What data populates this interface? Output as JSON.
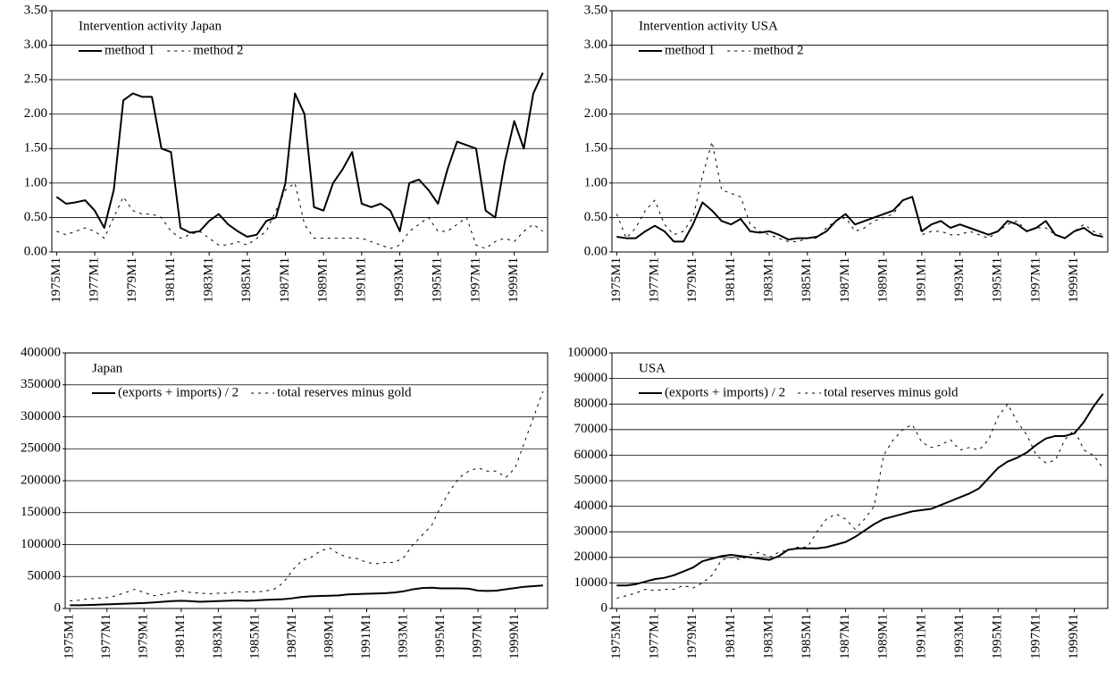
{
  "chart_data": [
    {
      "type": "line",
      "title": "Intervention activity Japan",
      "grid": true,
      "categories": [
        "1975M1",
        null,
        null,
        null,
        "1977M1",
        null,
        null,
        null,
        "1979M1",
        null,
        null,
        null,
        "1981M1",
        null,
        null,
        null,
        "1983M1",
        null,
        null,
        null,
        "1985M1",
        null,
        null,
        null,
        "1987M1",
        null,
        null,
        null,
        "1989M1",
        null,
        null,
        null,
        "1991M1",
        null,
        null,
        null,
        "1993M1",
        null,
        null,
        null,
        "1995M1",
        null,
        null,
        null,
        "1997M1",
        null,
        null,
        null,
        "1999M1",
        null,
        null,
        null
      ],
      "ylim": [
        0,
        3.5
      ],
      "yticks": [
        {
          "value": 0,
          "label": "0.00"
        },
        {
          "value": 0.5,
          "label": "0.50"
        },
        {
          "value": 1,
          "label": "1.00"
        },
        {
          "value": 1.5,
          "label": "1.50"
        },
        {
          "value": 2,
          "label": "2.00"
        },
        {
          "value": 2.5,
          "label": "2.50"
        },
        {
          "value": 3,
          "label": "3.00"
        },
        {
          "value": 3.5,
          "label": "3.50"
        }
      ],
      "series": [
        {
          "name": "method 1",
          "color": "#000000",
          "style": "solid",
          "values": [
            0.8,
            0.7,
            0.72,
            0.75,
            0.6,
            0.35,
            0.9,
            2.2,
            2.3,
            2.25,
            2.25,
            1.5,
            1.45,
            0.35,
            0.28,
            0.3,
            0.45,
            0.55,
            0.4,
            0.3,
            0.22,
            0.25,
            0.45,
            0.5,
            1.0,
            2.3,
            2.0,
            0.65,
            0.6,
            1.0,
            1.2,
            1.45,
            0.7,
            0.65,
            0.7,
            0.6,
            0.3,
            1.0,
            1.05,
            0.9,
            0.7,
            1.2,
            1.6,
            1.55,
            1.5,
            0.6,
            0.5,
            1.3,
            1.9,
            1.5,
            2.3,
            2.6
          ]
        },
        {
          "name": "method 2",
          "color": "#000000",
          "style": "dashed",
          "values": [
            0.3,
            0.25,
            0.3,
            0.35,
            0.3,
            0.2,
            0.5,
            0.8,
            0.6,
            0.55,
            0.55,
            0.5,
            0.3,
            0.2,
            0.25,
            0.3,
            0.2,
            0.1,
            0.1,
            0.15,
            0.1,
            0.2,
            0.3,
            0.6,
            0.9,
            1.0,
            0.4,
            0.2,
            0.2,
            0.2,
            0.2,
            0.2,
            0.2,
            0.15,
            0.1,
            0.05,
            0.1,
            0.3,
            0.4,
            0.5,
            0.3,
            0.3,
            0.4,
            0.5,
            0.1,
            0.05,
            0.15,
            0.2,
            0.15,
            0.3,
            0.4,
            0.3
          ]
        }
      ]
    },
    {
      "type": "line",
      "title": "Intervention activity USA",
      "grid": true,
      "categories": [
        "1975M1",
        null,
        null,
        null,
        "1977M1",
        null,
        null,
        null,
        "1979M1",
        null,
        null,
        null,
        "1981M1",
        null,
        null,
        null,
        "1983M1",
        null,
        null,
        null,
        "1985M1",
        null,
        null,
        null,
        "1987M1",
        null,
        null,
        null,
        "1989M1",
        null,
        null,
        null,
        "1991M1",
        null,
        null,
        null,
        "1993M1",
        null,
        null,
        null,
        "1995M1",
        null,
        null,
        null,
        "1997M1",
        null,
        null,
        null,
        "1999M1",
        null,
        null,
        null
      ],
      "ylim": [
        0,
        3.5
      ],
      "yticks": [
        {
          "value": 0,
          "label": "0.00"
        },
        {
          "value": 0.5,
          "label": "0.50"
        },
        {
          "value": 1,
          "label": "1.00"
        },
        {
          "value": 1.5,
          "label": "1.50"
        },
        {
          "value": 2,
          "label": "2.00"
        },
        {
          "value": 2.5,
          "label": "2.50"
        },
        {
          "value": 3,
          "label": "3.00"
        },
        {
          "value": 3.5,
          "label": "3.50"
        }
      ],
      "series": [
        {
          "name": "method 1",
          "color": "#000000",
          "style": "solid",
          "values": [
            0.22,
            0.2,
            0.2,
            0.3,
            0.38,
            0.3,
            0.15,
            0.15,
            0.4,
            0.72,
            0.6,
            0.45,
            0.4,
            0.48,
            0.3,
            0.28,
            0.3,
            0.25,
            0.18,
            0.2,
            0.2,
            0.22,
            0.3,
            0.45,
            0.55,
            0.4,
            0.45,
            0.5,
            0.55,
            0.6,
            0.75,
            0.8,
            0.3,
            0.4,
            0.45,
            0.35,
            0.4,
            0.35,
            0.3,
            0.25,
            0.3,
            0.45,
            0.4,
            0.3,
            0.35,
            0.45,
            0.25,
            0.2,
            0.3,
            0.35,
            0.25,
            0.22
          ]
        },
        {
          "name": "method 2",
          "color": "#000000",
          "style": "dashed",
          "values": [
            0.55,
            0.2,
            0.35,
            0.6,
            0.75,
            0.4,
            0.25,
            0.3,
            0.5,
            1.1,
            1.6,
            0.9,
            0.85,
            0.8,
            0.4,
            0.3,
            0.25,
            0.2,
            0.15,
            0.15,
            0.2,
            0.2,
            0.35,
            0.45,
            0.5,
            0.3,
            0.35,
            0.45,
            0.5,
            0.55,
            0.75,
            0.8,
            0.25,
            0.3,
            0.3,
            0.25,
            0.25,
            0.3,
            0.25,
            0.2,
            0.3,
            0.4,
            0.45,
            0.3,
            0.35,
            0.35,
            0.25,
            0.2,
            0.3,
            0.4,
            0.3,
            0.25
          ]
        }
      ]
    },
    {
      "type": "line",
      "title": "Japan",
      "grid": true,
      "categories": [
        "1975M1",
        null,
        null,
        null,
        "1977M1",
        null,
        null,
        null,
        "1979M1",
        null,
        null,
        null,
        "1981M1",
        null,
        null,
        null,
        "1983M1",
        null,
        null,
        null,
        "1985M1",
        null,
        null,
        null,
        "1987M1",
        null,
        null,
        null,
        "1989M1",
        null,
        null,
        null,
        "1991M1",
        null,
        null,
        null,
        "1993M1",
        null,
        null,
        null,
        "1995M1",
        null,
        null,
        null,
        "1997M1",
        null,
        null,
        null,
        "1999M1",
        null,
        null,
        null
      ],
      "ylim": [
        0,
        400000
      ],
      "yticks": [
        0,
        50000,
        100000,
        150000,
        200000,
        250000,
        300000,
        350000,
        400000
      ],
      "series": [
        {
          "name": "(exports + imports) / 2",
          "color": "#000000",
          "style": "solid",
          "values": [
            5000,
            5000,
            5500,
            6000,
            6500,
            7000,
            7500,
            8000,
            8500,
            9500,
            10500,
            11500,
            12000,
            11500,
            10500,
            11000,
            11500,
            12000,
            12500,
            12000,
            12500,
            13500,
            14000,
            14500,
            16000,
            18000,
            19000,
            19500,
            20000,
            20500,
            22000,
            22500,
            23000,
            23500,
            24000,
            25000,
            27000,
            30000,
            32000,
            32500,
            31500,
            31500,
            31500,
            31000,
            28000,
            27500,
            28000,
            30000,
            32000,
            34000,
            35000,
            36000
          ]
        },
        {
          "name": "total reserves minus gold",
          "color": "#000000",
          "style": "dashed",
          "values": [
            12000,
            13000,
            15000,
            16000,
            17000,
            20000,
            25000,
            30000,
            25000,
            20000,
            22000,
            25000,
            28000,
            25000,
            24000,
            23000,
            24000,
            24000,
            26000,
            26000,
            26000,
            27000,
            30000,
            40000,
            60000,
            75000,
            80000,
            90000,
            95000,
            85000,
            80000,
            78000,
            72000,
            70000,
            72000,
            72000,
            80000,
            100000,
            115000,
            130000,
            160000,
            185000,
            205000,
            215000,
            220000,
            215000,
            215000,
            205000,
            220000,
            260000,
            300000,
            340000
          ]
        }
      ]
    },
    {
      "type": "line",
      "title": "USA",
      "grid": true,
      "categories": [
        "1975M1",
        null,
        null,
        null,
        "1977M1",
        null,
        null,
        null,
        "1979M1",
        null,
        null,
        null,
        "1981M1",
        null,
        null,
        null,
        "1983M1",
        null,
        null,
        null,
        "1985M1",
        null,
        null,
        null,
        "1987M1",
        null,
        null,
        null,
        "1989M1",
        null,
        null,
        null,
        "1991M1",
        null,
        null,
        null,
        "1993M1",
        null,
        null,
        null,
        "1995M1",
        null,
        null,
        null,
        "1997M1",
        null,
        null,
        null,
        "1999M1",
        null,
        null,
        null
      ],
      "ylim": [
        0,
        100000
      ],
      "yticks": [
        0,
        10000,
        20000,
        30000,
        40000,
        50000,
        60000,
        70000,
        80000,
        90000,
        100000
      ],
      "series": [
        {
          "name": "(exports + imports) / 2",
          "color": "#000000",
          "style": "solid",
          "values": [
            9000,
            9000,
            9500,
            10500,
            11500,
            12000,
            13000,
            14500,
            16000,
            18500,
            19500,
            20500,
            21000,
            20500,
            20000,
            19500,
            19000,
            20500,
            23000,
            23500,
            23500,
            23500,
            24000,
            25000,
            26000,
            28000,
            30500,
            33000,
            35000,
            36000,
            37000,
            38000,
            38500,
            39000,
            40500,
            42000,
            43500,
            45000,
            47000,
            51000,
            55000,
            57500,
            59000,
            61000,
            64000,
            66500,
            67500,
            67500,
            68500,
            73000,
            79000,
            84000
          ]
        },
        {
          "name": "total reserves minus gold",
          "color": "#000000",
          "style": "dashed",
          "values": [
            4000,
            5000,
            6000,
            7500,
            7000,
            7500,
            7500,
            9000,
            8000,
            10000,
            13000,
            19000,
            20000,
            19000,
            21000,
            22000,
            20000,
            22000,
            23000,
            24000,
            24000,
            30000,
            35000,
            37000,
            35000,
            31000,
            35000,
            40000,
            60000,
            66000,
            70000,
            72000,
            65000,
            63000,
            64000,
            66000,
            62000,
            63000,
            62000,
            66000,
            75000,
            80000,
            73000,
            68000,
            60000,
            57000,
            58000,
            66000,
            70000,
            62000,
            60000,
            55000
          ]
        }
      ]
    }
  ]
}
